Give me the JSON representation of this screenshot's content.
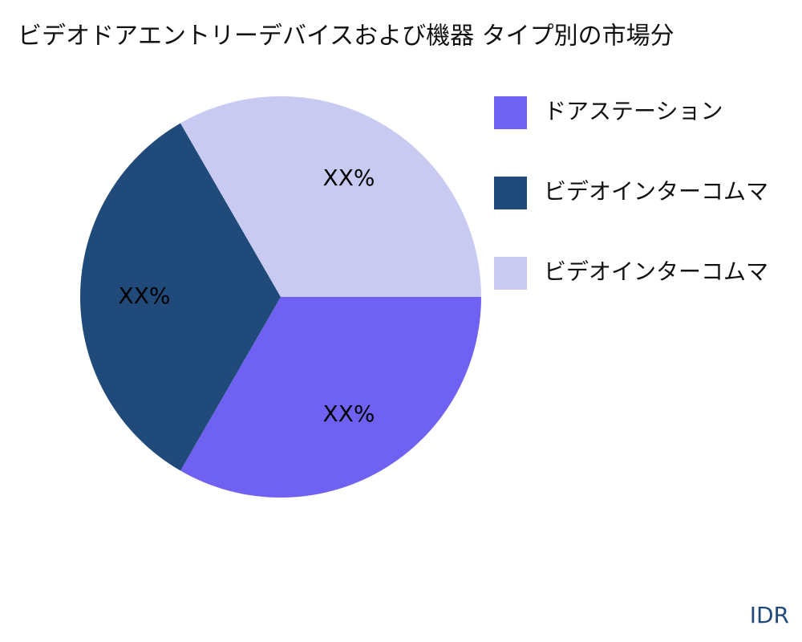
{
  "chart_data": {
    "type": "pie",
    "title": "ビデオドアエントリーデバイスおよび機器 タイプ別の市場分",
    "categories": [
      "ドアステーション",
      "ビデオインターコムマ",
      "ビデオインターコムマ"
    ],
    "values": [
      33.33,
      33.33,
      33.33
    ],
    "value_labels": [
      "XX%",
      "XX%",
      "XX%"
    ],
    "colors": [
      "#6f62f2",
      "#1f4a7a",
      "#c9caf1"
    ],
    "legend": "right"
  },
  "footer": "IDR"
}
